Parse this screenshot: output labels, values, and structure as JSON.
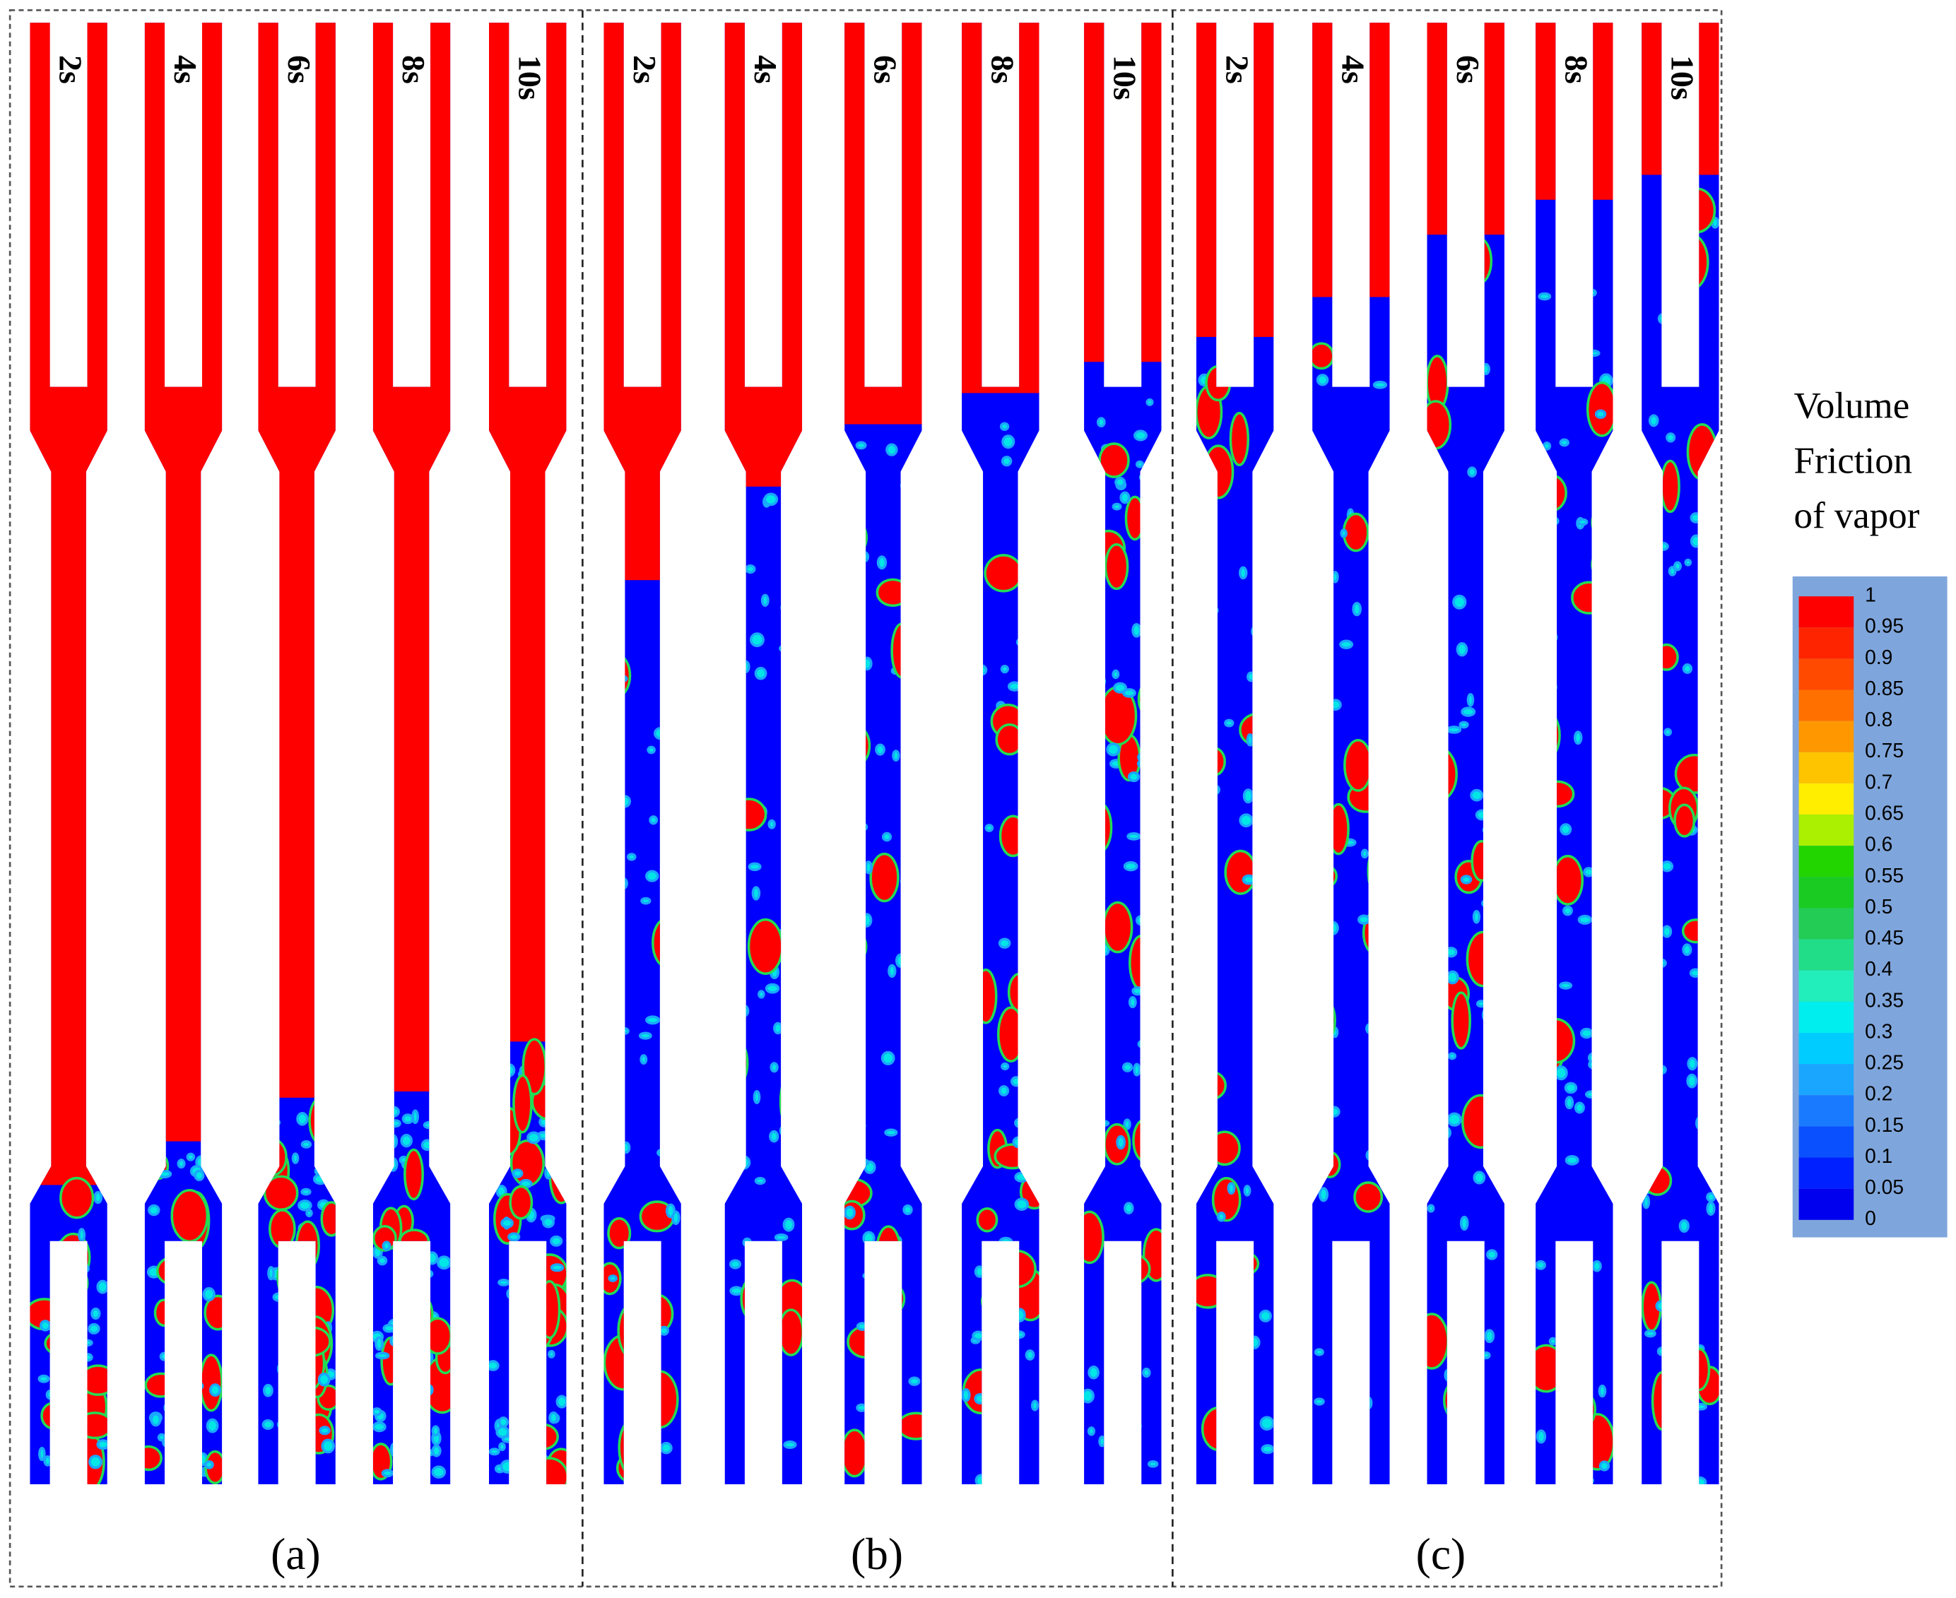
{
  "panels": [
    {
      "label": "(a)",
      "times": [
        "2s",
        "4s",
        "6s",
        "8s",
        "10s"
      ]
    },
    {
      "label": "(b)",
      "times": [
        "2s",
        "4s",
        "6s",
        "8s",
        "10s"
      ]
    },
    {
      "label": "(c)",
      "times": [
        "2s",
        "4s",
        "6s",
        "8s",
        "10s"
      ]
    }
  ],
  "legend": {
    "title": [
      "Volume",
      "Friction",
      "of vapor"
    ],
    "ticks": [
      1,
      0.95,
      0.9,
      0.85,
      0.8,
      0.75,
      0.7,
      0.65,
      0.6,
      0.55,
      0.5,
      0.45,
      0.4,
      0.35,
      0.3,
      0.25,
      0.2,
      0.15,
      0.1,
      0.05,
      0
    ],
    "colors": [
      "#ff0000",
      "#ff2400",
      "#ff4a00",
      "#ff7000",
      "#ff9800",
      "#ffc400",
      "#ffee00",
      "#aaf000",
      "#22d400",
      "#1acc22",
      "#22cc55",
      "#22dd88",
      "#22eebb",
      "#00eeee",
      "#00ccff",
      "#1aa6ff",
      "#1a7aff",
      "#0a50ff",
      "#0020ff",
      "#0000ee"
    ]
  }
}
